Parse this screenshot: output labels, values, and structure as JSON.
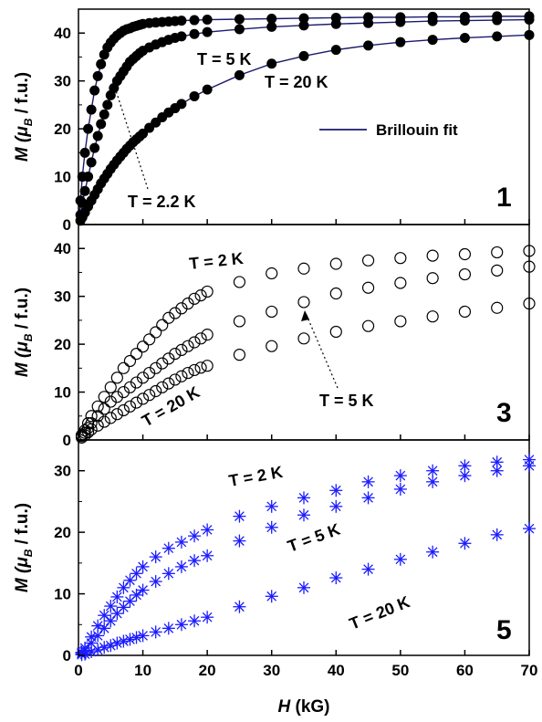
{
  "chart_data": [
    {
      "type": "scatter",
      "panel_label": "1",
      "marker": "filled-circle",
      "xlim": [
        0,
        70
      ],
      "ylim": [
        0,
        45
      ],
      "yticks": [
        0,
        10,
        20,
        30,
        40
      ],
      "ylabel": {
        "main": "M (",
        "mu": "μ",
        "sub": "B",
        "rest": " / f.u.)"
      },
      "legend": {
        "label": "Brillouin fit",
        "position": "center-right"
      },
      "annotations": [
        {
          "text": "T = 5 K"
        },
        {
          "text": "T = 20 K"
        },
        {
          "text": "T = 2.2 K"
        }
      ],
      "series": [
        {
          "temperature": "2.2 K",
          "x": [
            0.3,
            0.6,
            1,
            1.5,
            2,
            2.5,
            3,
            3.5,
            4,
            4.5,
            5,
            5.5,
            6,
            6.5,
            7,
            7.5,
            8,
            8.5,
            9,
            9.5,
            10,
            11,
            12,
            13,
            14,
            15,
            16,
            18,
            20,
            25,
            30,
            35,
            40,
            45,
            50,
            55,
            60,
            65,
            70
          ],
          "y": [
            5,
            10,
            15,
            20,
            24,
            28,
            31,
            33.5,
            35.5,
            37,
            38,
            38.8,
            39.5,
            40,
            40.5,
            40.8,
            41,
            41.3,
            41.5,
            41.7,
            41.9,
            42.1,
            42.2,
            42.3,
            42.4,
            42.5,
            42.6,
            42.7,
            42.8,
            42.9,
            43,
            43.1,
            43.2,
            43.3,
            43.3,
            43.4,
            43.4,
            43.5,
            43.5
          ]
        },
        {
          "temperature": "5 K",
          "x": [
            0.3,
            0.6,
            1,
            1.5,
            2,
            2.5,
            3,
            3.5,
            4,
            4.5,
            5,
            5.5,
            6,
            6.5,
            7,
            7.5,
            8,
            8.5,
            9,
            9.5,
            10,
            11,
            12,
            13,
            14,
            15,
            16,
            18,
            20,
            25,
            30,
            35,
            40,
            45,
            50,
            55,
            60,
            65,
            70
          ],
          "y": [
            2,
            4.5,
            7,
            10,
            13,
            16,
            18.5,
            21,
            23,
            25,
            27,
            28.5,
            30,
            31,
            32,
            33,
            34,
            34.6,
            35.2,
            35.8,
            36.3,
            37,
            37.6,
            38.1,
            38.6,
            39,
            39.3,
            39.8,
            40.2,
            40.8,
            41.3,
            41.6,
            41.9,
            42.1,
            42.3,
            42.5,
            42.6,
            42.7,
            42.8
          ]
        },
        {
          "temperature": "20 K",
          "x": [
            0.3,
            0.6,
            1,
            1.5,
            2,
            2.5,
            3,
            3.5,
            4,
            4.5,
            5,
            5.5,
            6,
            6.5,
            7,
            7.5,
            8,
            8.5,
            9,
            9.5,
            10,
            11,
            12,
            13,
            14,
            15,
            16,
            18,
            20,
            25,
            30,
            35,
            40,
            45,
            50,
            55,
            60,
            65,
            70
          ],
          "y": [
            0.8,
            1.5,
            2.5,
            3.8,
            5,
            6.2,
            7.4,
            8.6,
            9.6,
            10.6,
            11.6,
            12.5,
            13.4,
            14.2,
            15,
            15.8,
            16.5,
            17.2,
            17.8,
            18.4,
            19,
            20.2,
            21.3,
            22.4,
            23.4,
            24.3,
            25.2,
            26.8,
            28.2,
            31.2,
            33.6,
            35.2,
            36.5,
            37.4,
            38.1,
            38.6,
            39,
            39.3,
            39.6
          ]
        }
      ]
    },
    {
      "type": "scatter",
      "panel_label": "3",
      "marker": "open-circle",
      "xlim": [
        0,
        70
      ],
      "ylim": [
        0,
        45
      ],
      "yticks": [
        0,
        10,
        20,
        30,
        40
      ],
      "ylabel": {
        "main": "M (",
        "mu": "μ",
        "sub": "B",
        "rest": " / f.u.)"
      },
      "annotations": [
        {
          "text": "T = 2 K"
        },
        {
          "text": "T = 20 K"
        },
        {
          "text": "T = 5 K"
        }
      ],
      "series": [
        {
          "temperature": "2 K",
          "x": [
            0.5,
            1,
            1.5,
            2,
            3,
            4,
            5,
            6,
            7,
            8,
            9,
            10,
            11,
            12,
            13,
            14,
            15,
            16,
            17,
            18,
            19,
            20,
            25,
            30,
            35,
            40,
            45,
            50,
            55,
            60,
            65,
            70
          ],
          "y": [
            1,
            2,
            3.5,
            5,
            7,
            9,
            11,
            13,
            15,
            16.5,
            18,
            19.5,
            21,
            22.5,
            24,
            25.5,
            26.5,
            27.5,
            28.5,
            29.5,
            30.2,
            31,
            33,
            34.8,
            35.8,
            36.8,
            37.5,
            38,
            38.5,
            38.8,
            39.2,
            39.5
          ]
        },
        {
          "temperature": "5 K",
          "x": [
            0.5,
            1,
            1.5,
            2,
            3,
            4,
            5,
            6,
            7,
            8,
            9,
            10,
            11,
            12,
            13,
            14,
            15,
            16,
            17,
            18,
            19,
            20,
            25,
            30,
            35,
            40,
            45,
            50,
            55,
            60,
            65,
            70
          ],
          "y": [
            0.8,
            1.5,
            2.5,
            3.5,
            5,
            6.5,
            8,
            9,
            10,
            11,
            12,
            13,
            14,
            15,
            16,
            17,
            18,
            18.8,
            19.6,
            20.4,
            21.2,
            22,
            24.8,
            26.8,
            28.8,
            30.6,
            31.8,
            32.8,
            33.8,
            34.6,
            35.4,
            36.2
          ]
        },
        {
          "temperature": "20 K",
          "x": [
            0.5,
            1,
            1.5,
            2,
            3,
            4,
            5,
            6,
            7,
            8,
            9,
            10,
            11,
            12,
            13,
            14,
            15,
            16,
            17,
            18,
            19,
            20,
            25,
            30,
            35,
            40,
            45,
            50,
            55,
            60,
            65,
            70
          ],
          "y": [
            0.5,
            1,
            1.6,
            2.2,
            3,
            3.8,
            4.6,
            5.4,
            6.2,
            7,
            7.8,
            8.6,
            9.4,
            10.2,
            11,
            11.8,
            12.6,
            13.3,
            14,
            14.6,
            15.1,
            15.5,
            17.8,
            19.6,
            21.2,
            22.6,
            23.8,
            24.8,
            25.8,
            26.8,
            27.6,
            28.5
          ]
        }
      ]
    },
    {
      "type": "scatter",
      "panel_label": "5",
      "marker": "asterisk",
      "marker_color": "#1c1cff",
      "xlim": [
        0,
        70
      ],
      "ylim": [
        0,
        35
      ],
      "yticks": [
        0,
        10,
        20,
        30
      ],
      "xticks": [
        0,
        10,
        20,
        30,
        40,
        50,
        60,
        70
      ],
      "xlabel": {
        "main": "H",
        "rest": " (kG)"
      },
      "ylabel": {
        "main": "M (",
        "mu": "μ",
        "sub": "B",
        "rest": " / f.u.)"
      },
      "annotations": [
        {
          "text": "T = 2 K"
        },
        {
          "text": "T = 5 K"
        },
        {
          "text": "T = 20 K"
        }
      ],
      "series": [
        {
          "temperature": "2 K",
          "x": [
            0.5,
            1,
            2,
            3,
            4,
            5,
            6,
            7,
            8,
            9,
            10,
            12,
            14,
            16,
            18,
            20,
            25,
            30,
            35,
            40,
            45,
            50,
            55,
            60,
            65,
            70
          ],
          "y": [
            0.5,
            1.2,
            3,
            4.8,
            6.5,
            8,
            9.5,
            11,
            12.2,
            13.3,
            14.4,
            16,
            17.4,
            18.4,
            19.4,
            20.4,
            22.6,
            24.2,
            25.6,
            26.8,
            28.2,
            29.2,
            30,
            30.8,
            31.4,
            31.8
          ]
        },
        {
          "temperature": "5 K",
          "x": [
            0.5,
            1,
            2,
            3,
            4,
            5,
            6,
            7,
            8,
            9,
            10,
            12,
            14,
            16,
            18,
            20,
            25,
            30,
            35,
            40,
            45,
            50,
            55,
            60,
            65,
            70
          ],
          "y": [
            0.3,
            0.8,
            2,
            3.2,
            4.4,
            5.6,
            6.8,
            7.8,
            8.8,
            9.8,
            10.6,
            12,
            13.3,
            14.4,
            15.4,
            16.2,
            18.6,
            20.8,
            22.8,
            24.2,
            25.6,
            27,
            28.2,
            29.2,
            30,
            30.8
          ]
        },
        {
          "temperature": "20 K",
          "x": [
            0.5,
            1,
            2,
            3,
            4,
            5,
            6,
            7,
            8,
            9,
            10,
            12,
            14,
            16,
            18,
            20,
            25,
            30,
            35,
            40,
            45,
            50,
            55,
            60,
            65,
            70
          ],
          "y": [
            0.1,
            0.2,
            0.6,
            0.9,
            1.3,
            1.6,
            2,
            2.3,
            2.6,
            2.9,
            3.2,
            3.8,
            4.4,
            5,
            5.6,
            6.2,
            7.9,
            9.6,
            11,
            12.6,
            14,
            15.6,
            16.8,
            18.2,
            19.6,
            20.6
          ]
        }
      ]
    }
  ]
}
